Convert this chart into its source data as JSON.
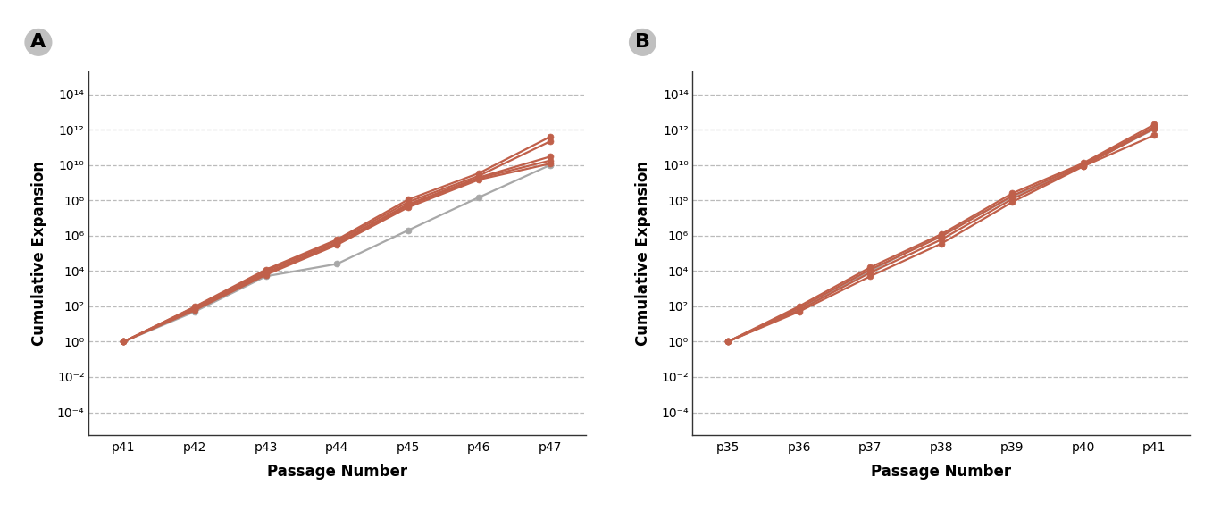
{
  "panel_A": {
    "x_labels": [
      "p41",
      "p42",
      "p43",
      "p44",
      "p45",
      "p46",
      "p47"
    ],
    "orange_lines": [
      [
        1.0,
        95,
        12000,
        600000,
        110000000.0,
        3500000000.0,
        400000000000.0
      ],
      [
        1.0,
        90,
        10000,
        500000,
        80000000.0,
        2500000000.0,
        220000000000.0
      ],
      [
        1.0,
        80,
        8000,
        400000,
        60000000.0,
        2000000000.0,
        30000000000.0
      ],
      [
        1.0,
        70,
        7000,
        350000,
        50000000.0,
        1800000000.0,
        18000000000.0
      ],
      [
        1.0,
        60,
        6000,
        300000,
        40000000.0,
        1500000000.0,
        12000000000.0
      ]
    ],
    "gray_lines": [
      [
        1.0,
        50,
        5000,
        25000,
        2000000.0,
        150000000.0,
        10000000000.0
      ]
    ],
    "panel_label": "A"
  },
  "panel_B": {
    "x_labels": [
      "p35",
      "p36",
      "p37",
      "p38",
      "p39",
      "p40",
      "p41"
    ],
    "orange_lines": [
      [
        1.0,
        100,
        16000,
        1200000.0,
        250000000.0,
        13000000000.0,
        2000000000000.0
      ],
      [
        1.0,
        80,
        12000,
        900000.0,
        180000000.0,
        11000000000.0,
        1500000000000.0
      ],
      [
        1.0,
        60,
        8000,
        600000.0,
        120000000.0,
        9000000000.0,
        1200000000000.0
      ],
      [
        1.0,
        50,
        5000,
        350000.0,
        80000000.0,
        8500000000.0,
        500000000000.0
      ]
    ],
    "gray_lines": [
      [
        1.0,
        70,
        10000,
        1100000.0,
        160000000.0,
        10000000000.0,
        1100000000000.0
      ]
    ],
    "panel_label": "B"
  },
  "ylim": [
    5e-06,
    2000000000000000.0
  ],
  "yticks": [
    0.0001,
    0.01,
    1.0,
    100.0,
    10000.0,
    1000000.0,
    100000000.0,
    10000000000.0,
    1000000000000.0,
    100000000000000.0
  ],
  "orange_color": "#C0604A",
  "gray_color": "#A8A8A8",
  "line_width": 1.6,
  "marker_size": 5,
  "xlabel": "Passage Number",
  "ylabel": "Cumulative Expansion",
  "bg_color": "#FFFFFF",
  "grid_color": "#BBBBBB",
  "label_fontsize": 12,
  "tick_fontsize": 10,
  "panel_label_fontsize": 16
}
